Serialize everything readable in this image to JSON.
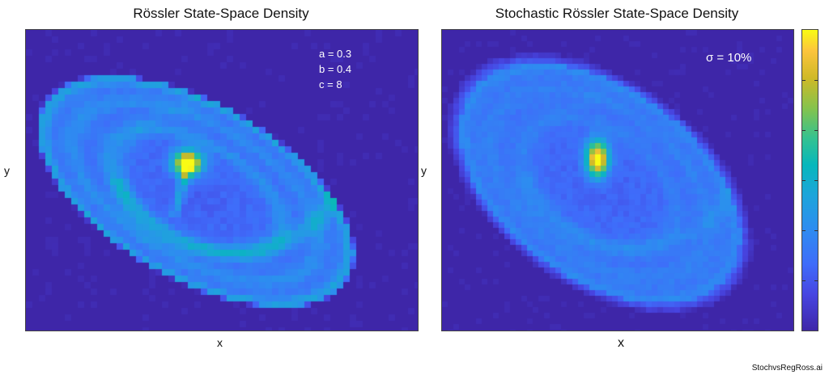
{
  "chart_data": [
    {
      "type": "heatmap",
      "title": "Rössler State-Space Density",
      "xlabel": "x",
      "ylabel": "y",
      "annotations": [
        "a = 0.3",
        "b = 0.4",
        "c = 8"
      ],
      "grid": false,
      "colormap": "parula"
    },
    {
      "type": "heatmap",
      "title": "Stochastic Rössler State-Space Density",
      "xlabel": "x",
      "ylabel": "y",
      "annotations": [
        "σ = 10%"
      ],
      "grid": false,
      "colormap": "parula",
      "colorbar": true
    }
  ],
  "footer": {
    "filename": "StochvsRegRoss.ai"
  },
  "colors": {
    "background": "#3e26a8",
    "peak": "#f9fb14"
  }
}
